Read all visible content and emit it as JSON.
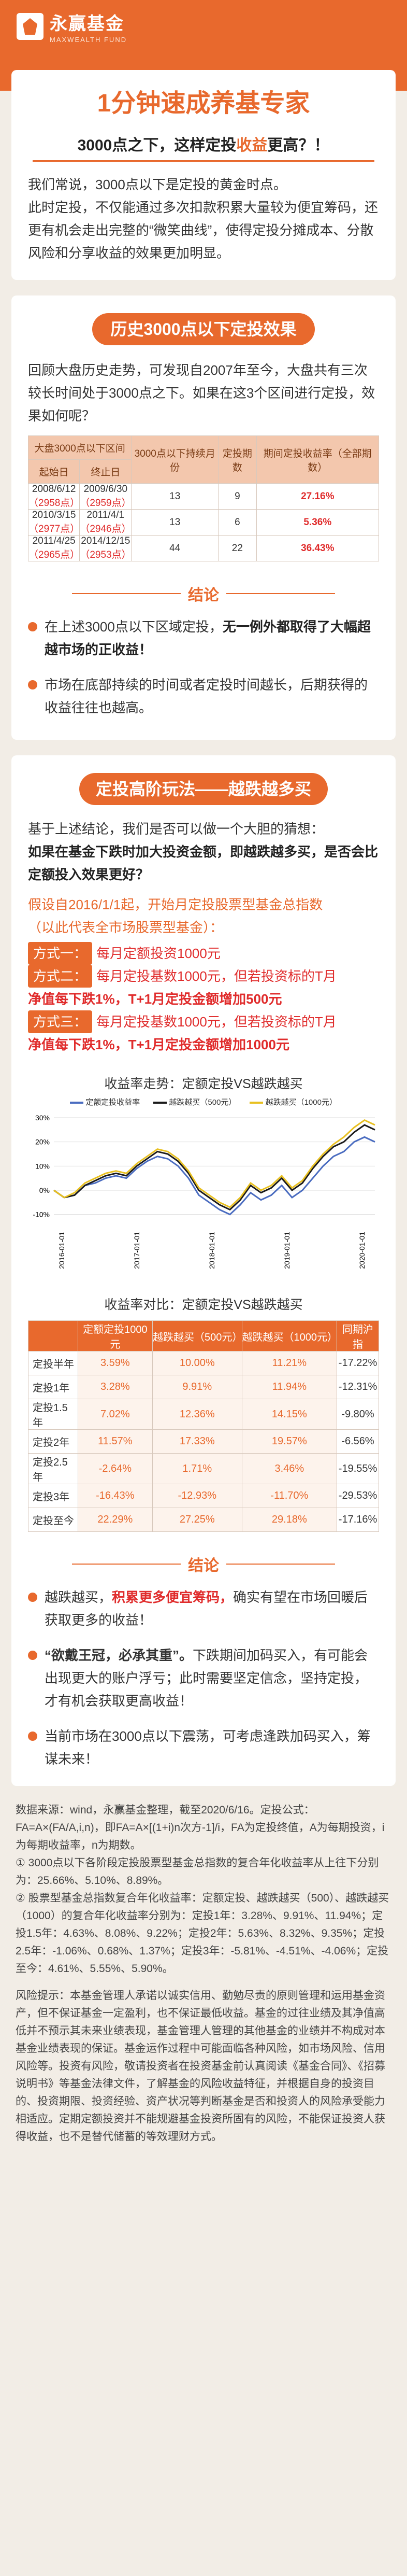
{
  "brand": {
    "name": "永赢基金",
    "en": "MAXWEALTH FUND"
  },
  "hero": {
    "title": "1分钟速成养基专家",
    "subtitle_pre": "3000点之下，这样定投",
    "subtitle_hl": "收益",
    "subtitle_post": "更高？！"
  },
  "intro": {
    "p1": "我们常说，3000点以下是定投的黄金时点。",
    "p2": "此时定投，不仅能通过多次扣款积累大量较为便宜筹码，还更有机会走出完整的“微笑曲线”，使得定投分摊成本、分散风险和分享收益的效果更加明显。"
  },
  "history": {
    "pill": "历史3000点以下定投效果",
    "text": "回顾大盘历史走势，可发现自2007年至今，大盘共有三次较长时间处于3000点之下。如果在这3个区间进行定投，效果如何呢？",
    "headers": {
      "period": "大盘3000点以下区间",
      "start": "起始日",
      "end": "终止日",
      "months": "3000点以下持续月份",
      "count": "定投期数",
      "pos_count": "期间正收益期数",
      "rate": "期间定投收益率（全部期数）"
    },
    "rows": [
      {
        "start": "2008/6/12",
        "start_pt": "（2958点）",
        "end": "2009/6/30",
        "end_pt": "（2959点）",
        "months": "13",
        "count": "9",
        "rate": "27.16%"
      },
      {
        "start": "2010/3/15",
        "start_pt": "（2977点）",
        "end": "2011/4/1",
        "end_pt": "（2946点）",
        "months": "13",
        "count": "6",
        "rate": "5.36%"
      },
      {
        "start": "2011/4/25",
        "start_pt": "（2965点）",
        "end": "2014/12/15",
        "end_pt": "（2953点）",
        "months": "44",
        "count": "22",
        "rate": "36.43%"
      }
    ]
  },
  "conclusion1": {
    "title": "结论",
    "b1_pre": "在上述3000点以下区域定投，",
    "b1_hl": "无一例外都取得了大幅超越市场的正收益！",
    "b2": "市场在底部持续的时间或者定投时间越长，后期获得的收益往往也越高。"
  },
  "advanced": {
    "pill": "定投高阶玩法——越跌越多买",
    "p1": "基于上述结论，我们是否可以做一个大胆的猜想：",
    "p2": "如果在基金下跌时加大投资金额，即越跌越多买，是否会比定额投入效果更好？",
    "assume1": "假设自2016/1/1起，开始月定投股票型基金总指数",
    "assume2": "（以此代表全市场股票型基金）：",
    "m1_tag": "方式一：",
    "m1": "每月定额投资1000元",
    "m2_tag": "方式二：",
    "m2a": "每月定投基数1000元，但若投资标的T月",
    "m2b": "净值每下跌1%，T+1月定投金额增加500元",
    "m3_tag": "方式三：",
    "m3a": "每月定投基数1000元，但若投资标的T月",
    "m3b": "净值每下跌1%，T+1月定投金额增加1000元"
  },
  "chart_data": {
    "type": "line",
    "title": "收益率走势：定额定投VS越跌越买",
    "series": [
      {
        "name": "定额定投收益率",
        "color": "#4a6cc0",
        "values": [
          0,
          -3,
          -2,
          2,
          3,
          5,
          6,
          5,
          9,
          12,
          14,
          13,
          10,
          5,
          -2,
          -5,
          -8,
          -10,
          -6,
          -1,
          -4,
          -2,
          2,
          -3,
          0,
          5,
          10,
          14,
          16,
          20,
          22,
          20
        ]
      },
      {
        "name": "越跌越买（500元）",
        "color": "#1a1a1a",
        "values": [
          0,
          -3,
          -2,
          2,
          4,
          6,
          7,
          6,
          10,
          13,
          16,
          15,
          12,
          7,
          0,
          -3,
          -6,
          -8,
          -4,
          2,
          -1,
          1,
          5,
          0,
          3,
          9,
          14,
          18,
          20,
          24,
          27,
          25
        ]
      },
      {
        "name": "越跌越买（1000元）",
        "color": "#e8c020",
        "values": [
          0,
          -3,
          -1,
          3,
          5,
          7,
          8,
          7,
          11,
          14,
          17,
          16,
          13,
          8,
          1,
          -2,
          -5,
          -7,
          -3,
          3,
          0,
          2,
          6,
          1,
          4,
          10,
          15,
          19,
          22,
          26,
          29,
          27
        ]
      }
    ],
    "xticks": [
      "2016-01-01",
      "2017-01-01",
      "2018-01-01",
      "2019-01-01",
      "2020-01-01"
    ],
    "ylim": [
      -15,
      30
    ],
    "yticks": [
      -10,
      0,
      10,
      20,
      30
    ]
  },
  "compare": {
    "title": "收益率对比：定额定投VS越跌越买",
    "headers": [
      "",
      "定额定投1000元",
      "越跌越买（500元）",
      "越跌越买（1000元）",
      "同期沪指"
    ],
    "rows": [
      [
        "定投半年",
        "3.59%",
        "10.00%",
        "11.21%",
        "-17.22%"
      ],
      [
        "定投1年",
        "3.28%",
        "9.91%",
        "11.94%",
        "-12.31%"
      ],
      [
        "定投1.5年",
        "7.02%",
        "12.36%",
        "14.15%",
        "-9.80%"
      ],
      [
        "定投2年",
        "11.57%",
        "17.33%",
        "19.57%",
        "-6.56%"
      ],
      [
        "定投2.5年",
        "-2.64%",
        "1.71%",
        "3.46%",
        "-19.55%"
      ],
      [
        "定投3年",
        "-16.43%",
        "-12.93%",
        "-11.70%",
        "-29.53%"
      ],
      [
        "定投至今",
        "22.29%",
        "27.25%",
        "29.18%",
        "-17.16%"
      ]
    ]
  },
  "conclusion2": {
    "title": "结论",
    "b1_pre": "越跌越买，",
    "b1_hl": "积累更多便宜筹码，",
    "b1_post": "确实有望在市场回暖后获取更多的收益！",
    "b2_pre": "“欲戴王冠，必承其重”。",
    "b2_post": "下跌期间加码买入，有可能会出现更大的账户浮亏；此时需要坚定信念，坚持定投，才有机会获取更高收益！",
    "b3": "当前市场在3000点以下震荡，可考虑逢跌加码买入，筹谋未来！"
  },
  "footer": {
    "source": "数据来源：wind，永赢基金整理，截至2020/6/16。定投公式：FA=A×(FA/A,i,n)，即FA=A×[(1+i)n次方-1]/i，FA为定投终值，A为每期投资，i为每期收益率，n为期数。",
    "n1": "① 3000点以下各阶段定投股票型基金总指数的复合年化收益率从上往下分别为：25.66%、5.10%、8.89%。",
    "n2": "② 股票型基金总指数复合年化收益率：定额定投、越跌越买（500）、越跌越买（1000）的复合年化收益率分别为：定投1年：3.28%、9.91%、11.94%；定投1.5年：4.63%、8.08%、9.22%；定投2年：5.63%、8.32%、9.35%；定投2.5年：-1.06%、0.68%、1.37%；定投3年：-5.81%、-4.51%、-4.06%；定投至今：4.61%、5.55%、5.90%。",
    "risk": "风险提示：本基金管理人承诺以诚实信用、勤勉尽责的原则管理和运用基金资产，但不保证基金一定盈利，也不保证最低收益。基金的过往业绩及其净值高低并不预示其未来业绩表现，基金管理人管理的其他基金的业绩并不构成对本基金业绩表现的保证。基金运作过程中可能面临各种风险，如市场风险、信用风险等。投资有风险，敬请投资者在投资基金前认真阅读《基金合同》、《招募说明书》等基金法律文件，了解基金的风险收益特征，并根据自身的投资目的、投资期限、投资经验、资产状况等判断基金是否和投资人的风险承受能力相适应。定期定额投资并不能规避基金投资所固有的风险，不能保证投资人获得收益，也不是替代储蓄的等效理财方式。"
  }
}
